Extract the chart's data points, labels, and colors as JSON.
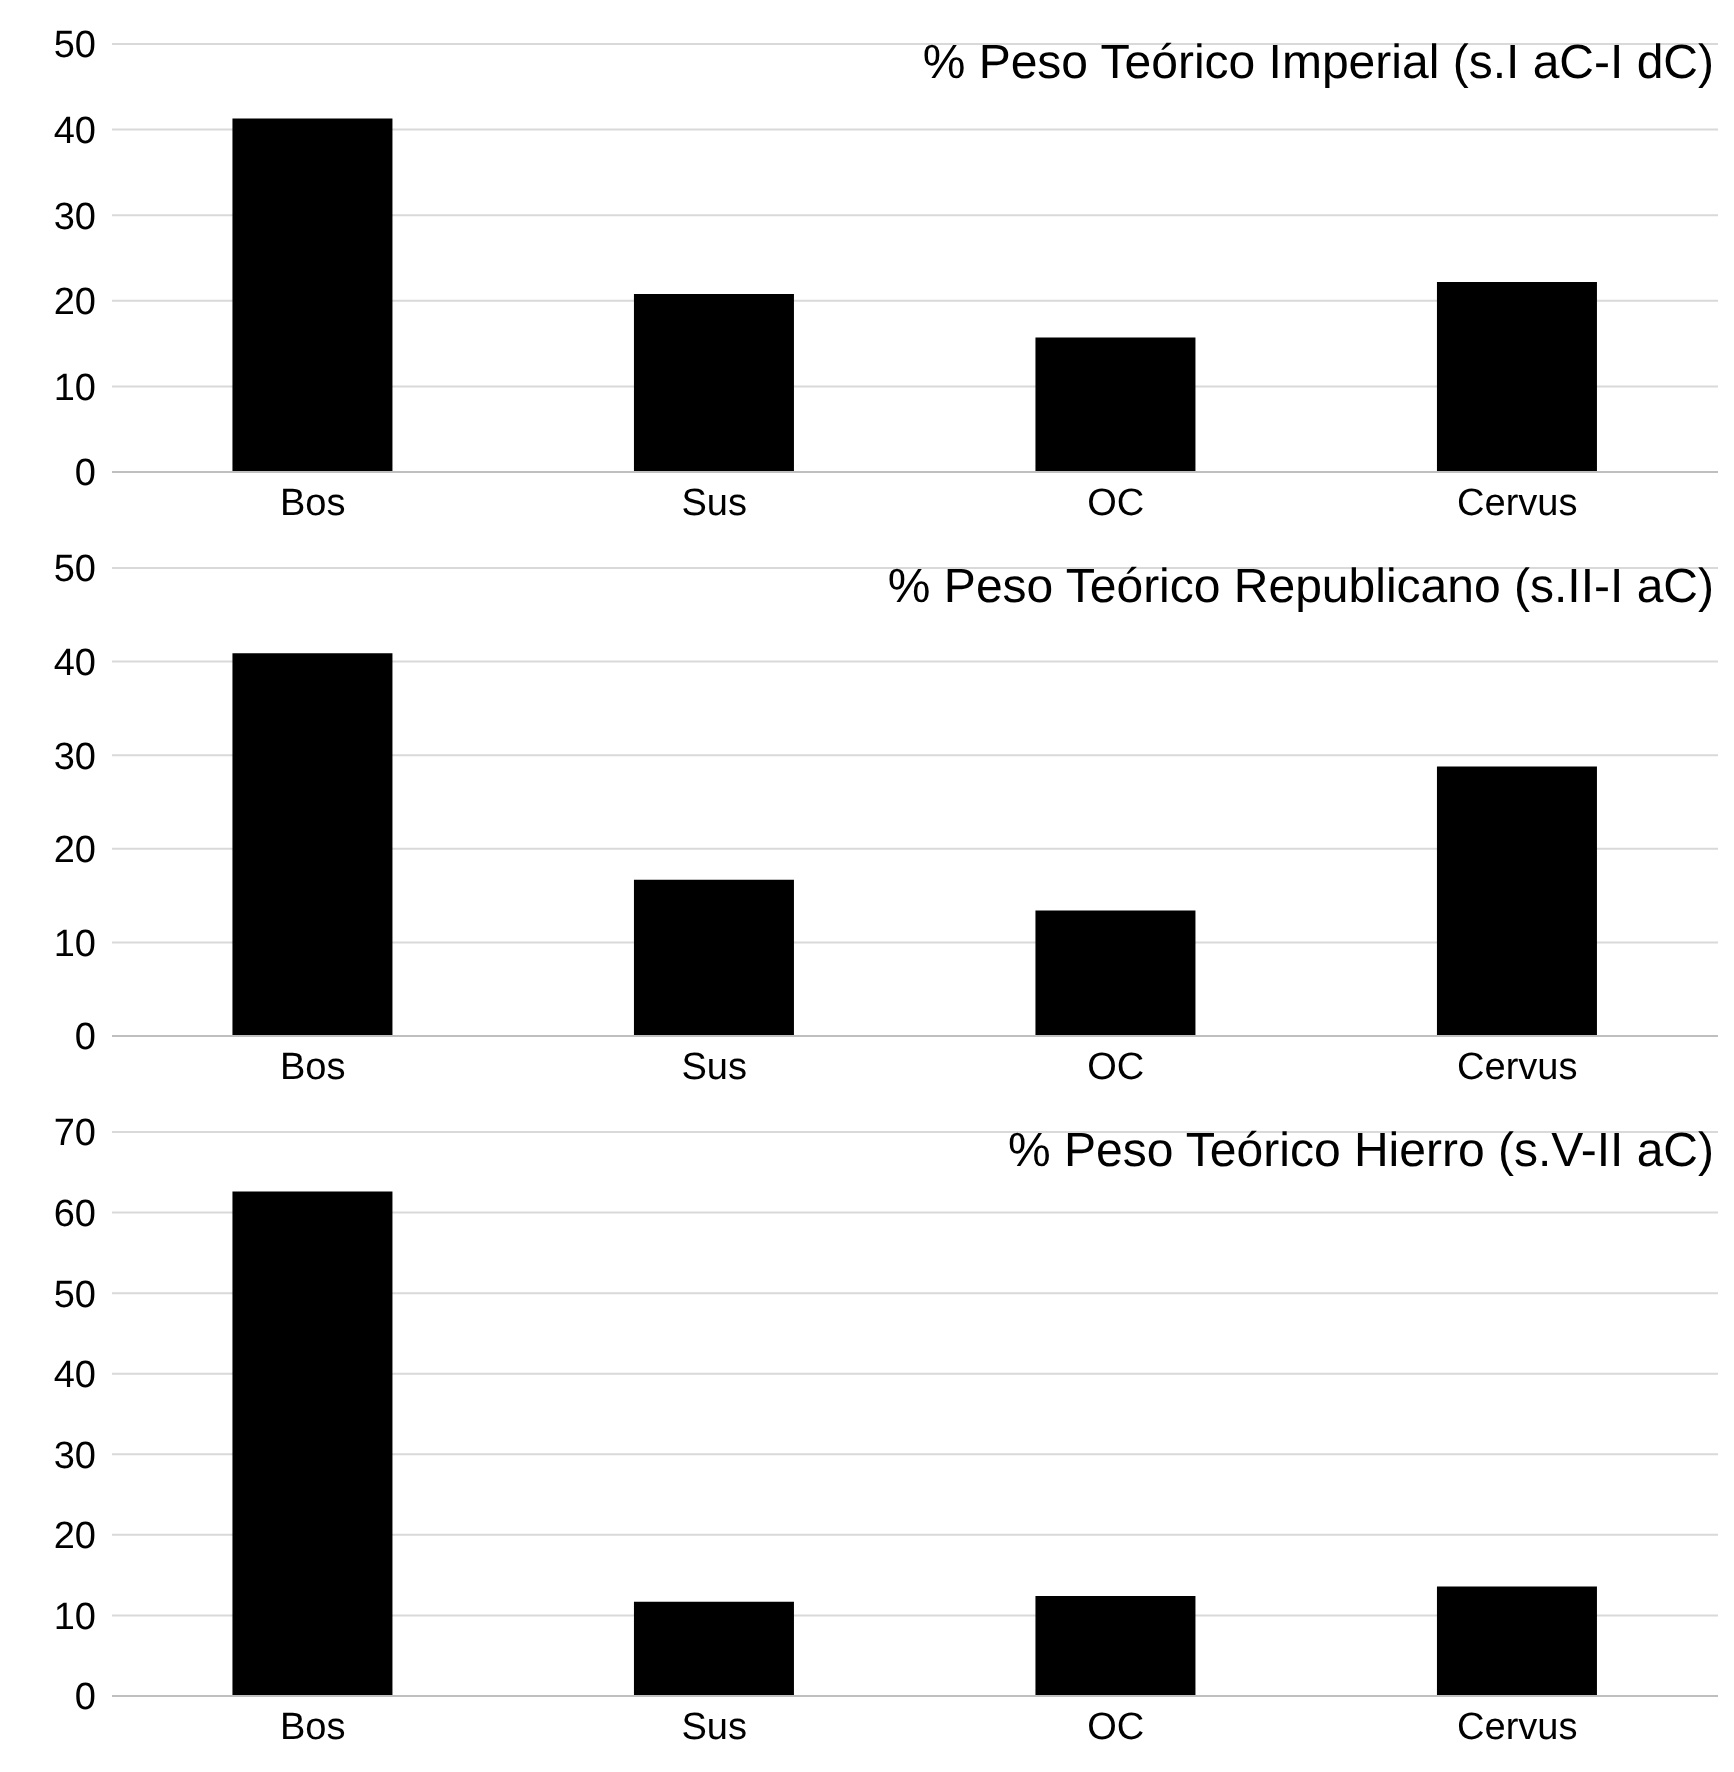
{
  "chart_data": [
    {
      "type": "bar",
      "title": "% Peso Teórico Imperial (s.I aC-I dC)",
      "categories": [
        "Bos",
        "Sus",
        "OC",
        "Cervus"
      ],
      "values": [
        41.3,
        20.8,
        15.7,
        22.2
      ],
      "color": "#000000",
      "ylim": [
        0,
        50
      ],
      "yticks": [
        0,
        10,
        20,
        30,
        40,
        50
      ],
      "grid": "y"
    },
    {
      "type": "bar",
      "title": "% Peso Teórico Republicano (s.II-I aC)",
      "categories": [
        "Bos",
        "Sus",
        "OC",
        "Cervus"
      ],
      "values": [
        40.9,
        16.7,
        13.4,
        28.8
      ],
      "color": "#000000",
      "ylim": [
        0,
        50
      ],
      "yticks": [
        0,
        10,
        20,
        30,
        40,
        50
      ],
      "grid": "y"
    },
    {
      "type": "bar",
      "title": "% Peso Teórico Hierro (s.V-II aC)",
      "categories": [
        "Bos",
        "Sus",
        "OC",
        "Cervus"
      ],
      "values": [
        62.6,
        11.7,
        12.4,
        13.6
      ],
      "color": "#000000",
      "ylim": [
        0,
        70
      ],
      "yticks": [
        0,
        10,
        20,
        30,
        40,
        50,
        60,
        70
      ],
      "grid": "y"
    }
  ]
}
